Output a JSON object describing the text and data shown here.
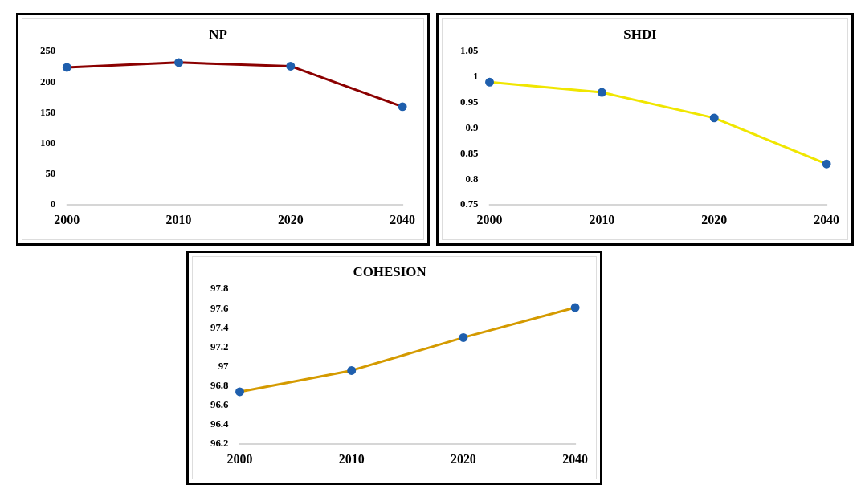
{
  "chart_data": [
    {
      "type": "line",
      "title": "NP",
      "categories": [
        "2000",
        "2010",
        "2020",
        "2040"
      ],
      "series": [
        {
          "color": "#8b0000",
          "values": [
            224,
            232,
            226,
            160
          ]
        }
      ],
      "ylim": [
        0,
        250
      ],
      "yticks": [
        0,
        50,
        100,
        150,
        200,
        250
      ],
      "grid": false,
      "legend": false,
      "marker": "circle",
      "line_style": "solid"
    },
    {
      "type": "line",
      "title": "SHDI",
      "categories": [
        "2000",
        "2010",
        "2020",
        "2040"
      ],
      "series": [
        {
          "color": "#f0e600",
          "values": [
            0.99,
            0.97,
            0.92,
            0.83
          ]
        }
      ],
      "ylim": [
        0.75,
        1.05
      ],
      "yticks": [
        0.75,
        0.8,
        0.85,
        0.9,
        0.95,
        1,
        1.05
      ],
      "grid": false,
      "legend": false,
      "marker": "circle",
      "line_style": "solid"
    },
    {
      "type": "line",
      "title": "COHESION",
      "categories": [
        "2000",
        "2010",
        "2020",
        "2040"
      ],
      "series": [
        {
          "color": "#d49a00",
          "values": [
            96.74,
            96.96,
            97.3,
            97.61
          ]
        }
      ],
      "ylim": [
        96.2,
        97.8
      ],
      "yticks": [
        96.2,
        96.4,
        96.6,
        96.8,
        97,
        97.2,
        97.4,
        97.6,
        97.8
      ],
      "grid": false,
      "legend": false,
      "marker": "circle",
      "line_style": "solid"
    }
  ]
}
